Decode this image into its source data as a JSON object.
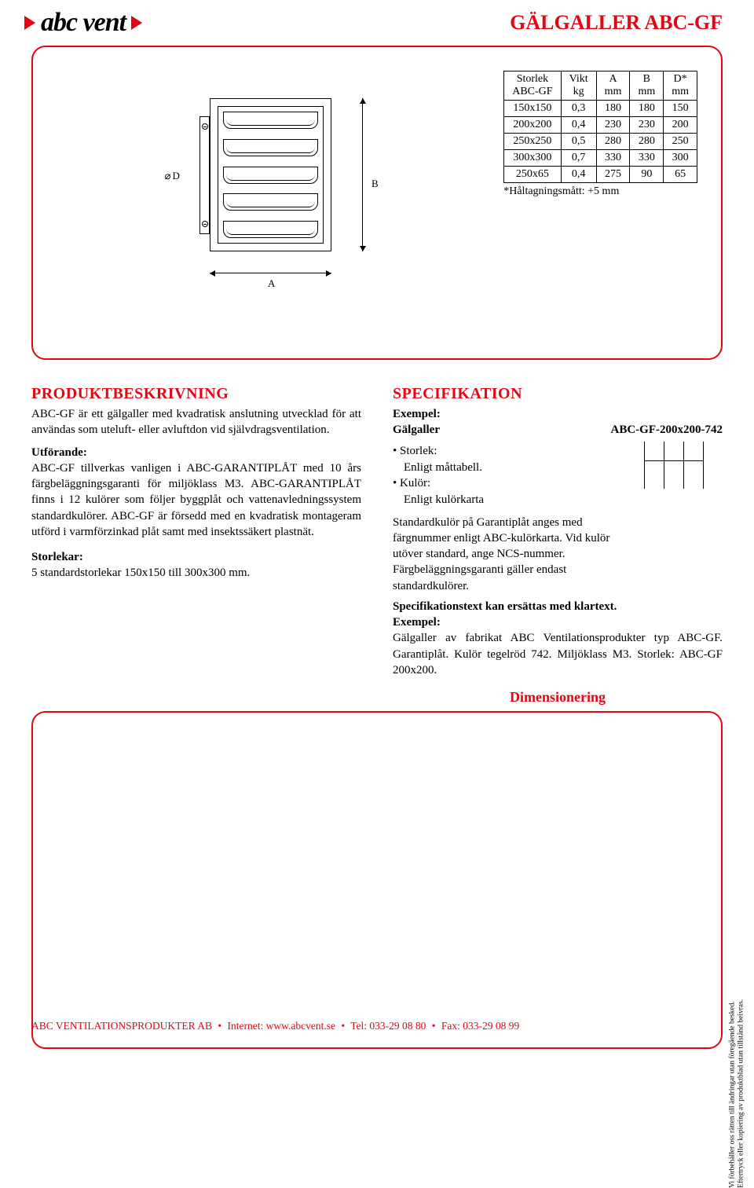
{
  "brand": {
    "name": "abc vent",
    "accent_color": "#e30613"
  },
  "page_title": "GÄLGALLER ABC-GF",
  "diagram": {
    "d_label": "D",
    "a_label": "A",
    "b_label": "B"
  },
  "table": {
    "headers": [
      [
        "Storlek",
        "ABC-GF"
      ],
      [
        "Vikt",
        "kg"
      ],
      [
        "A",
        "mm"
      ],
      [
        "B",
        "mm"
      ],
      [
        "D*",
        "mm"
      ]
    ],
    "rows": [
      [
        "150x150",
        "0,3",
        "180",
        "180",
        "150"
      ],
      [
        "200x200",
        "0,4",
        "230",
        "230",
        "200"
      ],
      [
        "250x250",
        "0,5",
        "280",
        "280",
        "250"
      ],
      [
        "300x300",
        "0,7",
        "330",
        "330",
        "300"
      ],
      [
        "250x65",
        "0,4",
        "275",
        "90",
        "65"
      ]
    ],
    "footnote": "*Håltagningsmått: +5 mm"
  },
  "left": {
    "heading": "PRODUKTBESKRIVNING",
    "intro": "ABC-GF är ett gälgaller med kvadratisk anslutning utvecklad för att användas som uteluft- eller avluftdon vid självdragsventilation.",
    "utforande_label": "Utförande:",
    "utforande_text": "ABC-GF tillverkas vanligen i ABC-GARANTIPLÅT med 10 års färgbeläggningsgaranti för miljöklass M3. ABC-GARANTIPLÅT finns i 12 kulörer som följer byggplåt och vattenavledningssystem standardkulörer. ABC-GF är försedd med en kvadratisk montageram utförd i varmförzinkad plåt samt med insektssäkert plastnät.",
    "storlekar_label": "Storlekar:",
    "storlekar_text": "5 standardstorlekar 150x150 till 300x300 mm."
  },
  "right": {
    "heading": "SPECIFIKATION",
    "exempel_label": "Exempel:",
    "product_word": "Gälgaller",
    "product_model": "ABC-GF-200x200-742",
    "bullets": {
      "storlek_label": "Storlek:",
      "storlek_val": "Enligt måttabell.",
      "kulor_label": "Kulör:",
      "kulor_val": "Enligt kulörkarta"
    },
    "kulor_para": "Standardkulör på Garantiplåt anges med färgnummer enligt ABC-kulörkarta. Vid kulör utöver standard, ange NCS-nummer. Färgbeläggningsgaranti gäller endast standardkulörer.",
    "spec_text_bold": "Specifikationstext kan ersättas med klartext.",
    "exempel2_label": "Exempel:",
    "exempel2_text": "Gälgaller av fabrikat ABC Ventilationsprodukter typ ABC-GF. Garantiplåt. Kulör tegelröd 742. Miljöklass M3. Storlek: ABC-GF 200x200."
  },
  "dimensioning_label": "Dimensionering",
  "footer": {
    "company": "ABC VENTILATIONSPRODUKTER AB",
    "internet_label": "Internet:",
    "internet": "www.abcvent.se",
    "tel_label": "Tel:",
    "tel": "033-29 08 80",
    "fax_label": "Fax:",
    "fax": "033-29 08 99"
  },
  "side_note": {
    "line1": "Vi förbehåller oss rätten till ändringar utan föregående besked.",
    "line2": "Eftertryck eller kopiering av produktblad utan tillstånd beivras."
  },
  "styling": {
    "accent": "#e30613",
    "text_color": "#000000",
    "background": "#ffffff",
    "body_font_size": 15,
    "heading_font_size": 20,
    "title_font_size": 26,
    "border_radius": 18,
    "border_width": 2
  }
}
